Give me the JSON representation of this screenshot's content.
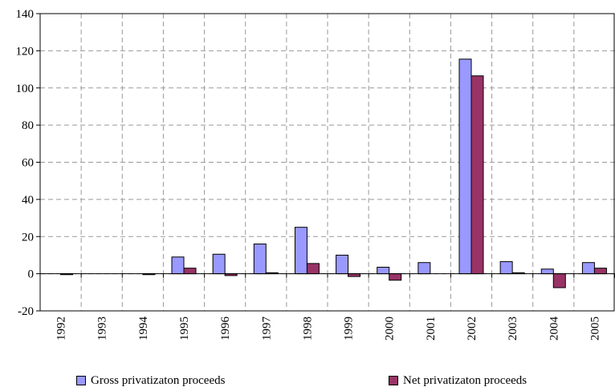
{
  "chart_data": {
    "type": "bar",
    "categories": [
      "1992",
      "1993",
      "1994",
      "1995",
      "1996",
      "1997",
      "1998",
      "1999",
      "2000",
      "2001",
      "2002",
      "2003",
      "2004",
      "2005"
    ],
    "series": [
      {
        "name": "Gross privatizaton proceeds",
        "color": "#9999ff",
        "values": [
          0,
          0,
          0,
          9,
          10.5,
          16,
          25,
          10,
          3.5,
          6,
          115.5,
          6.5,
          2.5,
          6
        ]
      },
      {
        "name": "Net privatizaton proceeds",
        "color": "#993366",
        "values": [
          -0.5,
          0,
          -0.5,
          3,
          -1,
          0.5,
          5.5,
          -1.5,
          -3.5,
          0,
          106.5,
          0.5,
          -7.5,
          3
        ]
      }
    ],
    "ylim": [
      -20,
      140
    ],
    "yticks": [
      "-20",
      "0",
      "20",
      "40",
      "60",
      "80",
      "100",
      "120",
      "140"
    ],
    "grid": true,
    "legend_position": "bottom"
  }
}
